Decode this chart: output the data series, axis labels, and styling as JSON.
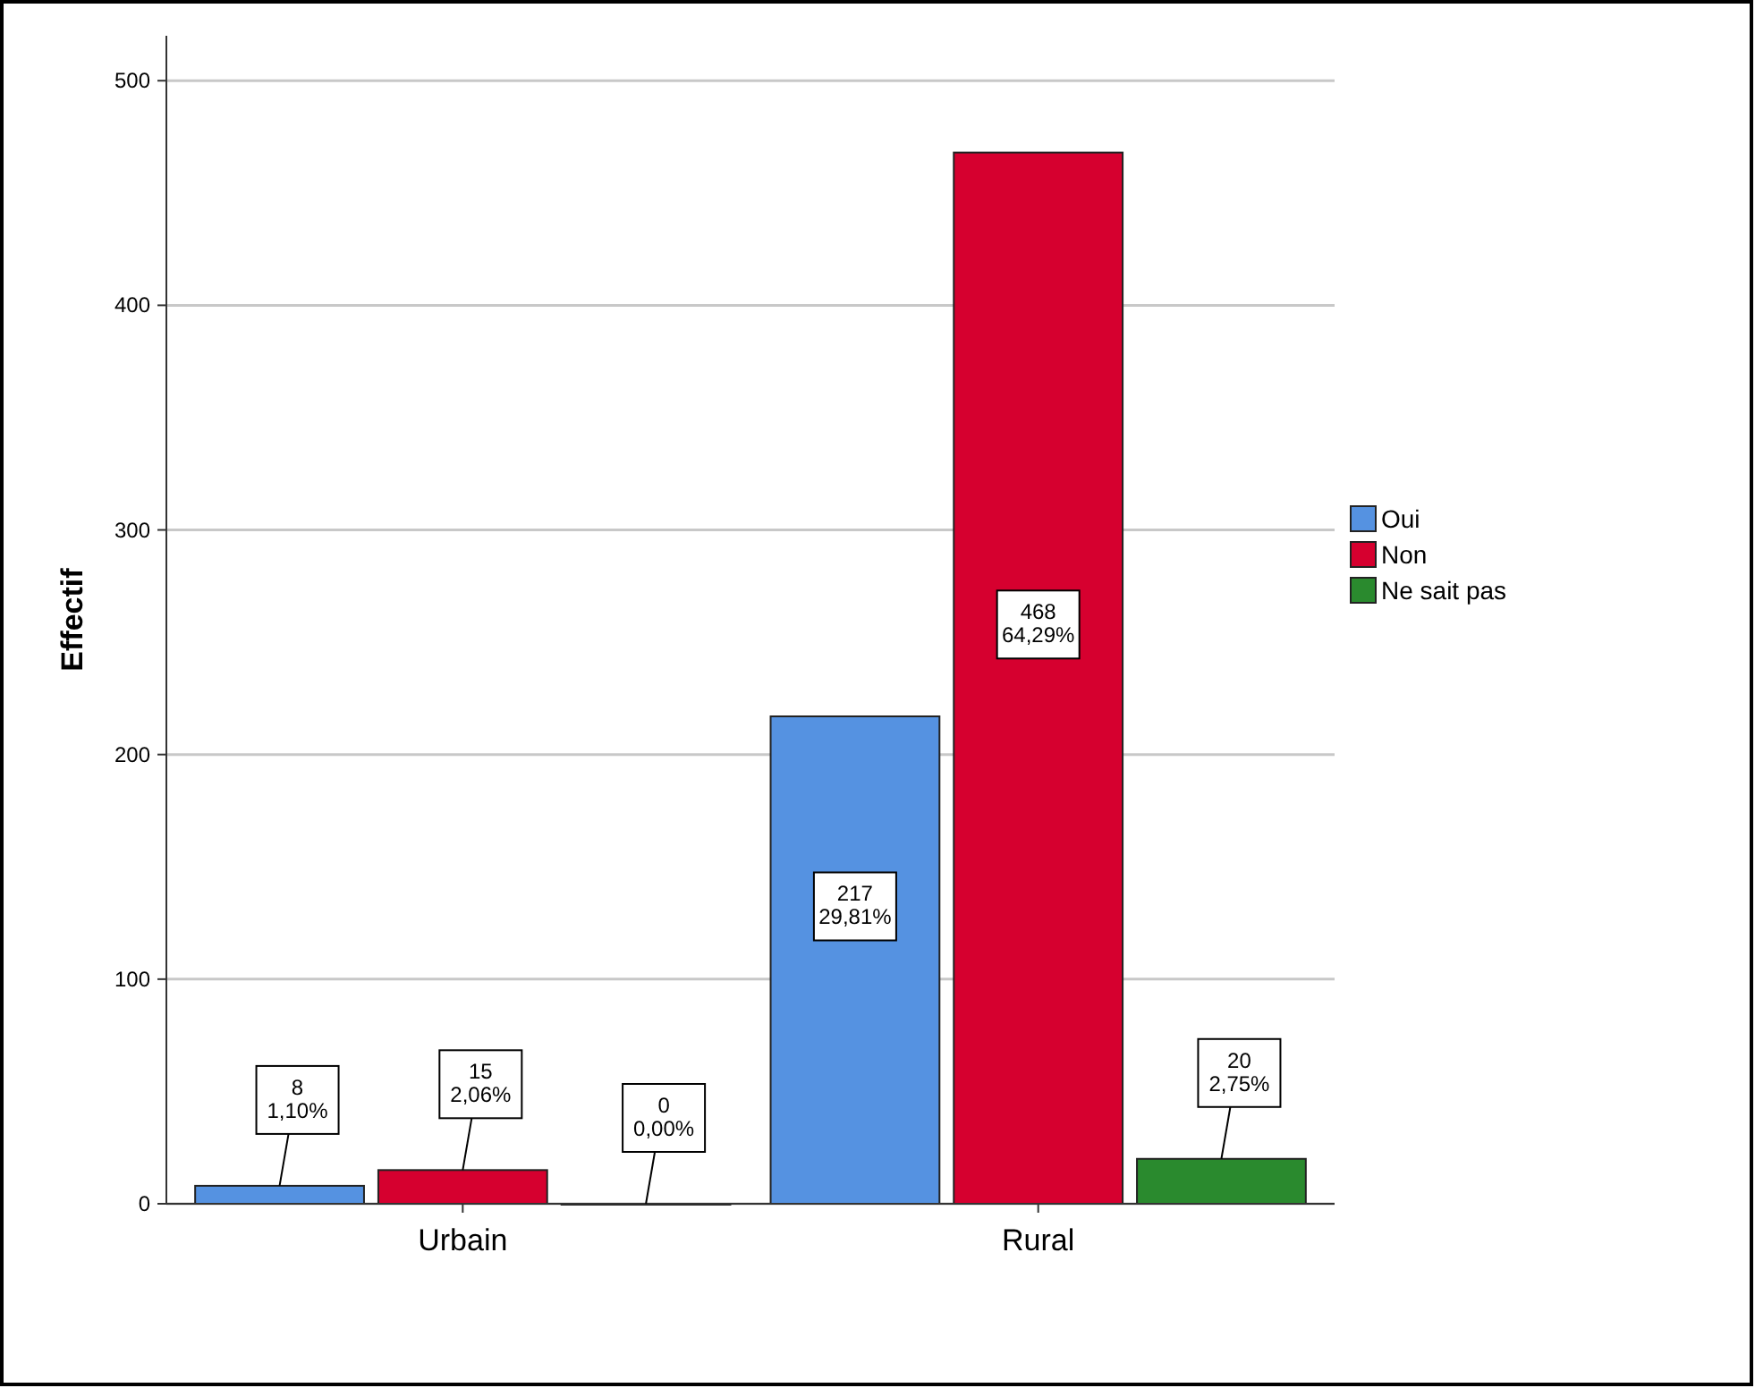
{
  "chart_data": {
    "type": "bar",
    "ylabel": "Effectif",
    "categories": [
      "Urbain",
      "Rural"
    ],
    "series": [
      {
        "name": "Oui",
        "color": "#5592e1",
        "values": [
          8,
          217
        ],
        "value_labels": [
          "8\n1,10%",
          "217\n29,81%"
        ]
      },
      {
        "name": "Non",
        "color": "#d6002f",
        "values": [
          15,
          468
        ],
        "value_labels": [
          "15\n2,06%",
          "468\n64,29%"
        ]
      },
      {
        "name": "Ne sait pas",
        "color": "#2a8a2e",
        "values": [
          0,
          20
        ],
        "value_labels": [
          "0\n0,00%",
          "20\n2,75%"
        ]
      }
    ],
    "ylim": [
      0,
      520
    ],
    "yticks": [
      0,
      100,
      200,
      300,
      400,
      500
    ],
    "grid": "y",
    "legend": "right"
  }
}
